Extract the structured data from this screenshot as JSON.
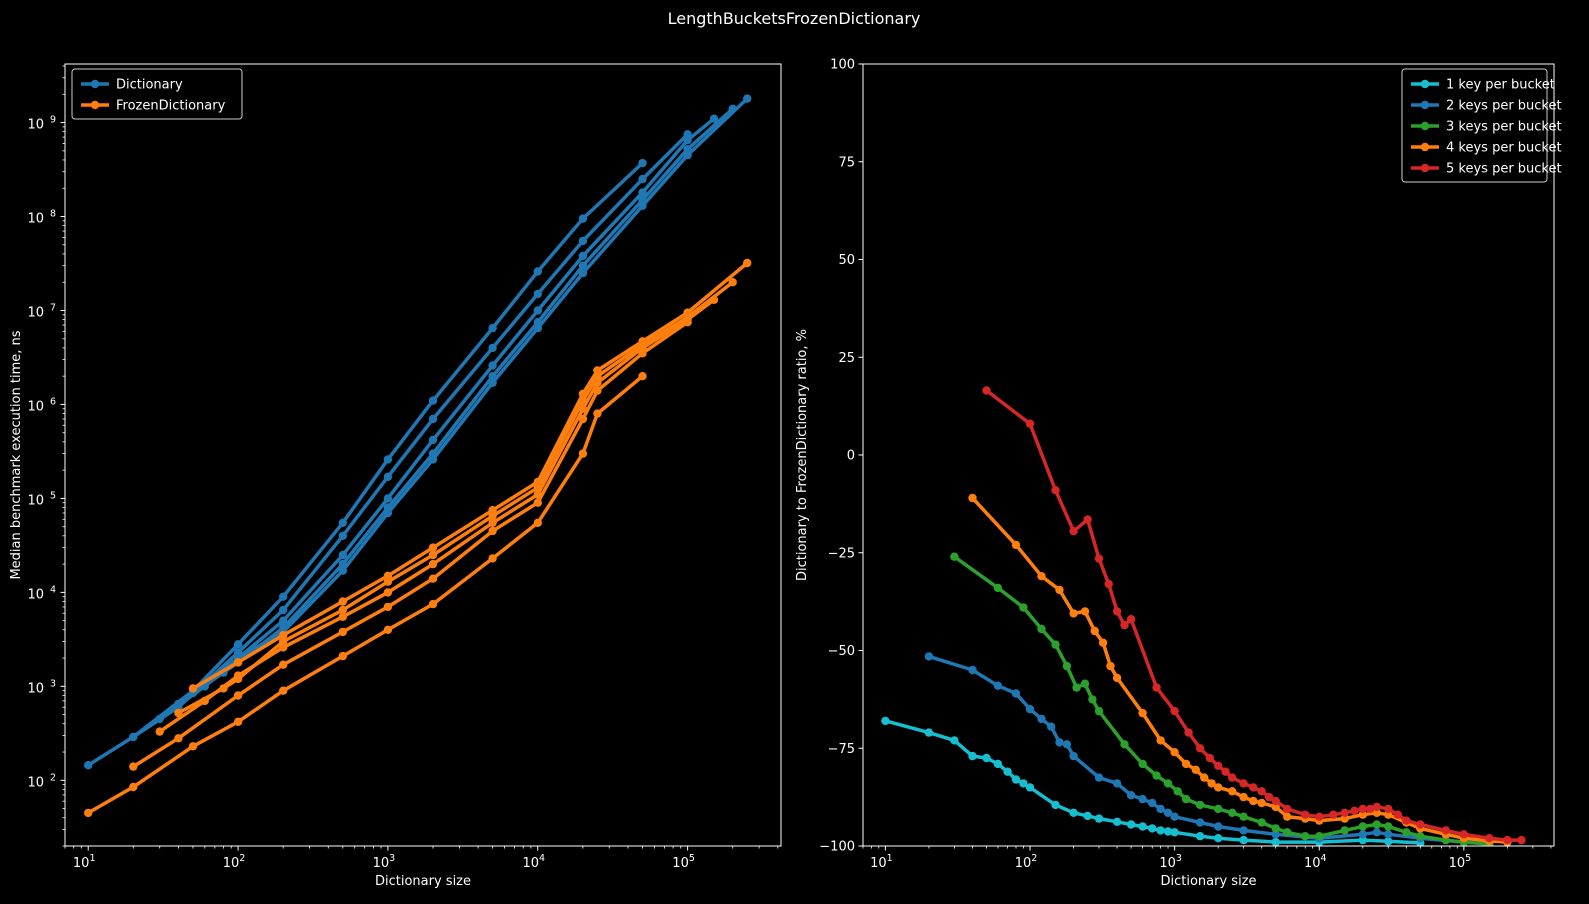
{
  "figure_title": "LengthBucketsFrozenDictionary",
  "colors": {
    "background": "#000000",
    "foreground": "#ffffff",
    "dictionary": "#1f77b4",
    "frozen": "#ff7f0e",
    "k1": "#17becf",
    "k2": "#1f77b4",
    "k3": "#2ca02c",
    "k4": "#ff7f0e",
    "k5": "#d62728"
  },
  "chart_data": [
    {
      "type": "line",
      "title": "",
      "xlabel": "Dictionary size",
      "ylabel": "Median benchmark execution time, ns",
      "xscale": "log",
      "yscale": "log",
      "xlim": [
        7,
        420000
      ],
      "ylim": [
        20,
        4200000000
      ],
      "xticks": [
        {
          "value": 10,
          "label": "10",
          "exp": "1"
        },
        {
          "value": 100,
          "label": "10",
          "exp": "2"
        },
        {
          "value": 1000,
          "label": "10",
          "exp": "3"
        },
        {
          "value": 10000,
          "label": "10",
          "exp": "4"
        },
        {
          "value": 100000,
          "label": "10",
          "exp": "5"
        }
      ],
      "yticks": [
        {
          "value": 100,
          "label": "10",
          "exp": "2"
        },
        {
          "value": 1000,
          "label": "10",
          "exp": "3"
        },
        {
          "value": 10000,
          "label": "10",
          "exp": "4"
        },
        {
          "value": 100000,
          "label": "10",
          "exp": "5"
        },
        {
          "value": 1000000,
          "label": "10",
          "exp": "6"
        },
        {
          "value": 10000000,
          "label": "10",
          "exp": "7"
        },
        {
          "value": 100000000,
          "label": "10",
          "exp": "8"
        },
        {
          "value": 1000000000,
          "label": "10",
          "exp": "9"
        }
      ],
      "legend": {
        "position": "top-left",
        "entries": [
          {
            "name": "Dictionary",
            "color": "#1f77b4"
          },
          {
            "name": "FrozenDictionary",
            "color": "#ff7f0e"
          }
        ]
      },
      "series": [
        {
          "name": "Dictionary",
          "group": "Dictionary",
          "color": "#1f77b4",
          "x": [
            10,
            20,
            50,
            100,
            200,
            500,
            1000,
            2000,
            5000,
            10000,
            20000,
            50000
          ],
          "y": [
            145,
            290,
            900,
            2800,
            9000,
            55000,
            260000,
            1100000,
            6500000,
            26000000,
            95000000,
            370000000
          ]
        },
        {
          "name": "Dictionary",
          "group": "Dictionary",
          "color": "#1f77b4",
          "x": [
            20,
            40,
            100,
            200,
            500,
            1000,
            2000,
            5000,
            10000,
            20000,
            50000,
            100000
          ],
          "y": [
            290,
            600,
            2300,
            6500,
            40000,
            170000,
            700000,
            4000000,
            15000000,
            55000000,
            250000000,
            750000000
          ]
        },
        {
          "name": "Dictionary",
          "group": "Dictionary",
          "color": "#1f77b4",
          "x": [
            30,
            60,
            100,
            200,
            500,
            1000,
            2000,
            5000,
            10000,
            20000,
            50000,
            100000,
            150000
          ],
          "y": [
            450,
            1000,
            2000,
            5000,
            25000,
            100000,
            420000,
            2600000,
            10000000,
            38000000,
            180000000,
            650000000,
            1100000000
          ]
        },
        {
          "name": "Dictionary",
          "group": "Dictionary",
          "color": "#1f77b4",
          "x": [
            40,
            80,
            100,
            200,
            500,
            1000,
            2000,
            5000,
            10000,
            20000,
            50000,
            100000,
            200000
          ],
          "y": [
            650,
            1400,
            1800,
            4200,
            20000,
            80000,
            300000,
            2000000,
            7500000,
            30000000,
            150000000,
            520000000,
            1400000000
          ]
        },
        {
          "name": "Dictionary",
          "group": "Dictionary",
          "color": "#1f77b4",
          "x": [
            50,
            100,
            200,
            500,
            1000,
            2000,
            5000,
            10000,
            20000,
            50000,
            100000,
            250000
          ],
          "y": [
            850,
            2000,
            3800,
            17000,
            70000,
            260000,
            1700000,
            6500000,
            25000000,
            130000000,
            450000000,
            1800000000
          ]
        },
        {
          "name": "FrozenDictionary",
          "group": "FrozenDictionary",
          "color": "#ff7f0e",
          "x": [
            10,
            20,
            50,
            100,
            200,
            500,
            1000,
            2000,
            5000,
            10000,
            20000,
            25000,
            50000
          ],
          "y": [
            45,
            85,
            230,
            420,
            900,
            2100,
            4000,
            7500,
            23000,
            55000,
            300000,
            800000,
            2000000
          ]
        },
        {
          "name": "FrozenDictionary",
          "group": "FrozenDictionary",
          "color": "#ff7f0e",
          "x": [
            20,
            40,
            100,
            200,
            500,
            1000,
            2000,
            5000,
            10000,
            20000,
            25000,
            50000,
            100000
          ],
          "y": [
            140,
            280,
            800,
            1700,
            3800,
            7000,
            14000,
            45000,
            90000,
            700000,
            1400000,
            3500000,
            7500000
          ]
        },
        {
          "name": "FrozenDictionary",
          "group": "FrozenDictionary",
          "color": "#ff7f0e",
          "x": [
            30,
            60,
            100,
            200,
            500,
            1000,
            2000,
            5000,
            10000,
            20000,
            25000,
            50000,
            100000,
            150000
          ],
          "y": [
            330,
            700,
            1300,
            2600,
            5500,
            10000,
            20000,
            55000,
            110000,
            900000,
            1700000,
            4000000,
            8000000,
            13000000
          ]
        },
        {
          "name": "FrozenDictionary",
          "group": "FrozenDictionary",
          "color": "#ff7f0e",
          "x": [
            40,
            80,
            100,
            200,
            500,
            1000,
            2000,
            5000,
            10000,
            20000,
            25000,
            50000,
            100000,
            200000
          ],
          "y": [
            520,
            950,
            1200,
            3000,
            6500,
            13000,
            25000,
            65000,
            130000,
            1100000,
            2000000,
            4300000,
            8500000,
            20000000
          ]
        },
        {
          "name": "FrozenDictionary",
          "group": "FrozenDictionary",
          "color": "#ff7f0e",
          "x": [
            50,
            100,
            200,
            500,
            1000,
            2000,
            5000,
            10000,
            20000,
            25000,
            50000,
            100000,
            250000
          ],
          "y": [
            950,
            1800,
            3500,
            8000,
            15000,
            30000,
            75000,
            150000,
            1300000,
            2300000,
            4700000,
            9500000,
            32000000
          ]
        }
      ]
    },
    {
      "type": "line",
      "title": "",
      "xlabel": "Dictionary size",
      "ylabel": "Dictionary to FrozenDictionary ratio, %",
      "xscale": "log",
      "yscale": "linear",
      "xlim": [
        7,
        420000
      ],
      "ylim": [
        -100,
        100
      ],
      "xticks": [
        {
          "value": 10,
          "label": "10",
          "exp": "1"
        },
        {
          "value": 100,
          "label": "10",
          "exp": "2"
        },
        {
          "value": 1000,
          "label": "10",
          "exp": "3"
        },
        {
          "value": 10000,
          "label": "10",
          "exp": "4"
        },
        {
          "value": 100000,
          "label": "10",
          "exp": "5"
        }
      ],
      "yticks": [
        {
          "value": -100,
          "label": "−100"
        },
        {
          "value": -75,
          "label": "−75"
        },
        {
          "value": -50,
          "label": "−50"
        },
        {
          "value": -25,
          "label": "−25"
        },
        {
          "value": 0,
          "label": "0"
        },
        {
          "value": 25,
          "label": "25"
        },
        {
          "value": 50,
          "label": "50"
        },
        {
          "value": 75,
          "label": "75"
        },
        {
          "value": 100,
          "label": "100"
        }
      ],
      "legend": {
        "position": "top-right",
        "entries": [
          {
            "name": "1 key per bucket",
            "color": "#17becf"
          },
          {
            "name": "2 keys per bucket",
            "color": "#1f77b4"
          },
          {
            "name": "3 keys per bucket",
            "color": "#2ca02c"
          },
          {
            "name": "4 keys per bucket",
            "color": "#ff7f0e"
          },
          {
            "name": "5 keys per bucket",
            "color": "#d62728"
          }
        ]
      },
      "series": [
        {
          "name": "1 key per bucket",
          "color": "#17becf",
          "x": [
            10,
            20,
            30,
            40,
            50,
            60,
            70,
            80,
            90,
            100,
            150,
            200,
            250,
            300,
            400,
            500,
            600,
            700,
            800,
            900,
            1000,
            1500,
            2000,
            3000,
            5000,
            10000,
            20000,
            30000,
            50000
          ],
          "y": [
            -68,
            -71,
            -73,
            -77,
            -77.5,
            -79,
            -81,
            -83,
            -84,
            -85,
            -89.5,
            -91.5,
            -92.3,
            -93,
            -93.8,
            -94.5,
            -95,
            -95.5,
            -96,
            -96.3,
            -96.5,
            -97.5,
            -98,
            -98.5,
            -99,
            -99,
            -98.5,
            -98.8,
            -99.2
          ]
        },
        {
          "name": "2 keys per bucket",
          "color": "#1f77b4",
          "x": [
            20,
            40,
            60,
            80,
            100,
            120,
            140,
            160,
            180,
            200,
            300,
            400,
            500,
            600,
            700,
            800,
            900,
            1000,
            1500,
            2000,
            3000,
            5000,
            10000,
            20000,
            25000,
            30000,
            50000,
            100000
          ],
          "y": [
            -51.5,
            -55,
            -59,
            -61,
            -65,
            -67.5,
            -69.5,
            -73.5,
            -74,
            -77,
            -82.5,
            -84,
            -87,
            -88,
            -89,
            -90.5,
            -91.5,
            -92.5,
            -94,
            -95,
            -96,
            -97,
            -98,
            -97,
            -96.5,
            -97,
            -98,
            -99
          ]
        },
        {
          "name": "3 keys per bucket",
          "color": "#2ca02c",
          "x": [
            30,
            60,
            90,
            120,
            150,
            180,
            210,
            240,
            270,
            300,
            450,
            600,
            750,
            900,
            1050,
            1200,
            1500,
            2000,
            2500,
            3000,
            4000,
            5000,
            6000,
            8000,
            10000,
            15000,
            20000,
            25000,
            30000,
            40000,
            50000,
            75000,
            100000,
            150000
          ],
          "y": [
            -26,
            -34,
            -39,
            -44.5,
            -48.5,
            -54,
            -59.5,
            -58.5,
            -62.5,
            -65.5,
            -74,
            -79,
            -82,
            -84,
            -86,
            -88,
            -89.5,
            -90.5,
            -91.5,
            -92.5,
            -94,
            -95.5,
            -96.5,
            -97.5,
            -97.5,
            -96,
            -95,
            -94.5,
            -95,
            -96.5,
            -97.5,
            -98.5,
            -99,
            -99.5
          ]
        },
        {
          "name": "4 keys per bucket",
          "color": "#ff7f0e",
          "x": [
            40,
            80,
            120,
            160,
            200,
            240,
            280,
            320,
            360,
            400,
            600,
            800,
            1000,
            1200,
            1400,
            1600,
            1800,
            2000,
            2500,
            3000,
            3500,
            4000,
            5000,
            6000,
            8000,
            10000,
            15000,
            20000,
            25000,
            30000,
            40000,
            50000,
            75000,
            100000,
            150000,
            200000
          ],
          "y": [
            -11,
            -23,
            -31,
            -34.5,
            -40.5,
            -40,
            -45,
            -48,
            -54,
            -57,
            -66,
            -73,
            -76,
            -79,
            -80.5,
            -82.5,
            -84,
            -85,
            -86,
            -87.5,
            -88.5,
            -89,
            -90,
            -92.5,
            -93,
            -93.5,
            -93,
            -92,
            -91.5,
            -92,
            -94,
            -95.5,
            -97,
            -98,
            -98.7,
            -99
          ]
        },
        {
          "name": "5 keys per bucket",
          "color": "#d62728",
          "x": [
            50,
            100,
            150,
            200,
            250,
            300,
            350,
            400,
            450,
            500,
            750,
            1000,
            1250,
            1500,
            1750,
            2000,
            2250,
            2500,
            3000,
            3500,
            4000,
            4500,
            5000,
            6000,
            8000,
            10000,
            12500,
            15000,
            17500,
            20000,
            22500,
            25000,
            30000,
            35000,
            40000,
            50000,
            75000,
            100000,
            150000,
            200000,
            250000
          ],
          "y": [
            16.5,
            8,
            -9,
            -19.5,
            -16.5,
            -26.5,
            -33,
            -40,
            -43.5,
            -42,
            -59.5,
            -65.5,
            -71,
            -75,
            -77.5,
            -79.5,
            -81,
            -82.5,
            -84,
            -85,
            -86,
            -87.5,
            -88.5,
            -90.5,
            -92,
            -92.5,
            -92,
            -91.5,
            -91,
            -90.5,
            -90.5,
            -90,
            -90.5,
            -92,
            -93.5,
            -94.5,
            -96,
            -97,
            -98,
            -98.5,
            -98.5
          ]
        }
      ]
    }
  ]
}
